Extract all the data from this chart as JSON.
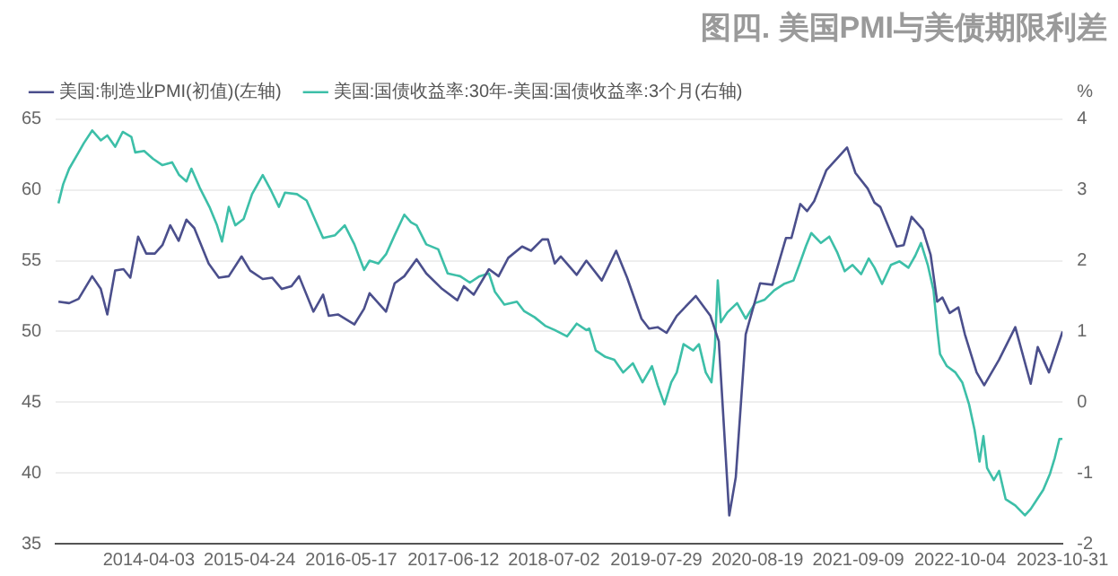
{
  "chart_data": {
    "type": "line",
    "title": "图四. 美国PMI与美债期限利差",
    "y2label": "%",
    "xlim": [
      "2013-04-12",
      "2023-10-31"
    ],
    "xticks": [
      "2014-04-03",
      "2015-04-24",
      "2016-05-17",
      "2017-06-12",
      "2018-07-02",
      "2019-07-29",
      "2020-08-19",
      "2021-09-09",
      "2022-10-04",
      "2023-10-31"
    ],
    "ylim": [
      35,
      65
    ],
    "yticks": [
      35,
      40,
      45,
      50,
      55,
      60,
      65
    ],
    "y2lim": [
      -2,
      4
    ],
    "y2ticks": [
      -2,
      -1,
      0,
      1,
      2,
      3,
      4
    ],
    "grid": "y",
    "legend": "top left",
    "marker": "none",
    "line_style": "solid",
    "series": [
      {
        "name": "美国:制造业PMI(初值)(左轴)",
        "color": "#4b4f8c",
        "x": [
          "2013-04-22",
          "2013-06-02",
          "2013-07-08",
          "2013-08-29",
          "2013-10-01",
          "2013-10-26",
          "2013-11-25",
          "2013-12-27",
          "2014-01-22",
          "2014-02-21",
          "2014-03-24",
          "2014-04-26",
          "2014-05-25",
          "2014-06-24",
          "2014-07-26",
          "2014-08-25",
          "2014-09-24",
          "2014-11-18",
          "2014-12-27",
          "2015-02-03",
          "2015-03-24",
          "2015-04-26",
          "2015-06-13",
          "2015-07-19",
          "2015-08-25",
          "2015-10-01",
          "2015-10-30",
          "2015-12-24",
          "2016-01-30",
          "2016-02-21",
          "2016-03-27",
          "2016-05-29",
          "2016-07-05",
          "2016-07-26",
          "2016-09-27",
          "2016-10-30",
          "2016-12-06",
          "2017-01-22",
          "2017-02-28",
          "2017-04-30",
          "2017-06-27",
          "2017-07-22",
          "2017-08-29",
          "2017-10-26",
          "2017-12-02",
          "2018-01-08",
          "2018-03-02",
          "2018-04-05",
          "2018-05-18",
          "2018-06-09",
          "2018-07-05",
          "2018-07-28",
          "2018-09-27",
          "2018-11-03",
          "2019-01-01",
          "2019-02-25",
          "2019-04-08",
          "2019-06-02",
          "2019-07-01",
          "2019-08-03",
          "2019-09-06",
          "2019-10-15",
          "2019-12-27",
          "2020-02-21",
          "2020-03-24",
          "2020-05-03",
          "2020-05-28",
          "2020-07-05",
          "2020-08-29",
          "2020-10-15",
          "2020-12-06",
          "2020-12-27",
          "2021-01-30",
          "2021-02-25",
          "2021-03-24",
          "2021-05-10",
          "2021-07-28",
          "2021-08-29",
          "2021-10-15",
          "2021-11-10",
          "2021-12-02",
          "2022-02-03",
          "2022-03-02",
          "2022-04-01",
          "2022-05-14",
          "2022-06-13",
          "2022-07-08",
          "2022-07-28",
          "2022-08-25",
          "2022-09-27",
          "2022-10-22",
          "2022-12-06",
          "2023-01-04",
          "2023-03-02",
          "2023-05-03",
          "2023-07-01",
          "2023-07-28",
          "2023-09-09",
          "2023-10-31"
        ],
        "values": [
          52.1,
          52.0,
          52.3,
          53.9,
          53.0,
          51.2,
          54.3,
          54.4,
          53.8,
          56.7,
          55.5,
          55.5,
          56.1,
          57.5,
          56.4,
          57.9,
          57.3,
          54.8,
          53.8,
          53.9,
          55.3,
          54.3,
          53.7,
          53.8,
          53.0,
          53.2,
          53.9,
          51.4,
          52.6,
          51.1,
          51.2,
          50.5,
          51.6,
          52.7,
          51.4,
          53.4,
          53.9,
          55.1,
          54.1,
          53.0,
          52.2,
          53.2,
          52.6,
          54.4,
          53.9,
          55.2,
          56.0,
          55.7,
          56.5,
          56.5,
          54.8,
          55.3,
          54.0,
          55.0,
          53.6,
          55.7,
          53.8,
          50.9,
          50.2,
          50.3,
          49.9,
          51.1,
          52.5,
          51.1,
          49.3,
          37.0,
          39.7,
          49.8,
          53.4,
          53.3,
          56.6,
          56.6,
          59.0,
          58.5,
          59.2,
          61.4,
          63.0,
          61.2,
          60.1,
          59.1,
          58.8,
          56.0,
          56.1,
          58.1,
          57.2,
          55.4,
          52.1,
          52.4,
          51.3,
          51.7,
          49.8,
          47.1,
          46.2,
          48.0,
          50.3,
          46.3,
          48.9,
          47.1,
          50.0
        ]
      },
      {
        "name": "美国:国债收益率:30年-美国:国债收益率:3个月(右轴)",
        "color": "#3dbfa8",
        "axis": "y2",
        "x": [
          "2013-04-22",
          "2013-05-10",
          "2013-06-02",
          "2013-07-08",
          "2013-07-28",
          "2013-08-29",
          "2013-10-01",
          "2013-10-26",
          "2013-11-25",
          "2013-12-24",
          "2014-01-26",
          "2014-02-10",
          "2014-03-16",
          "2014-04-19",
          "2014-05-25",
          "2014-07-01",
          "2014-07-28",
          "2014-08-25",
          "2014-09-13",
          "2014-10-15",
          "2014-11-21",
          "2014-12-20",
          "2015-01-08",
          "2015-02-03",
          "2015-02-28",
          "2015-04-01",
          "2015-05-03",
          "2015-06-13",
          "2015-07-15",
          "2015-08-14",
          "2015-09-06",
          "2015-10-22",
          "2015-11-28",
          "2015-12-24",
          "2016-01-30",
          "2016-03-16",
          "2016-04-22",
          "2016-05-29",
          "2016-07-05",
          "2016-07-26",
          "2016-08-29",
          "2016-09-27",
          "2016-10-30",
          "2016-12-06",
          "2017-01-01",
          "2017-01-22",
          "2017-02-28",
          "2017-04-15",
          "2017-05-21",
          "2017-07-08",
          "2017-08-14",
          "2017-09-20",
          "2017-10-26",
          "2017-11-18",
          "2017-12-24",
          "2018-02-10",
          "2018-03-09",
          "2018-04-19",
          "2018-05-29",
          "2018-07-05",
          "2018-08-21",
          "2018-09-27",
          "2018-11-03",
          "2018-11-14",
          "2018-12-09",
          "2019-01-15",
          "2019-02-18",
          "2019-03-24",
          "2019-04-30",
          "2019-06-06",
          "2019-07-12",
          "2019-08-03",
          "2019-08-29",
          "2019-09-24",
          "2019-10-15",
          "2019-11-10",
          "2019-12-17",
          "2020-01-08",
          "2020-02-03",
          "2020-02-25",
          "2020-03-09",
          "2020-03-20",
          "2020-04-01",
          "2020-04-26",
          "2020-06-02",
          "2020-07-05",
          "2020-08-10",
          "2020-09-16",
          "2020-10-22",
          "2020-11-28",
          "2021-01-04",
          "2021-01-26",
          "2021-02-21",
          "2021-03-13",
          "2021-04-19",
          "2021-05-21",
          "2021-06-20",
          "2021-07-19",
          "2021-08-18",
          "2021-09-20",
          "2021-10-19",
          "2021-11-10",
          "2021-12-09",
          "2022-01-12",
          "2022-02-14",
          "2022-03-20",
          "2022-04-15",
          "2022-05-07",
          "2022-06-02",
          "2022-06-24",
          "2022-07-08",
          "2022-07-19",
          "2022-08-14",
          "2022-09-16",
          "2022-10-12",
          "2022-11-07",
          "2022-11-28",
          "2022-12-17",
          "2023-01-01",
          "2023-01-15",
          "2023-02-10",
          "2023-03-02",
          "2023-03-27",
          "2023-05-03",
          "2023-06-09",
          "2023-07-01",
          "2023-07-26",
          "2023-08-18",
          "2023-09-13",
          "2023-10-01",
          "2023-10-19",
          "2023-10-31"
        ],
        "values": [
          2.81,
          3.08,
          3.3,
          3.53,
          3.66,
          3.84,
          3.7,
          3.77,
          3.61,
          3.82,
          3.75,
          3.53,
          3.55,
          3.44,
          3.35,
          3.39,
          3.21,
          3.12,
          3.3,
          3.03,
          2.76,
          2.5,
          2.27,
          2.76,
          2.5,
          2.59,
          2.94,
          3.21,
          2.99,
          2.76,
          2.96,
          2.94,
          2.85,
          2.63,
          2.32,
          2.36,
          2.5,
          2.23,
          1.87,
          2.0,
          1.96,
          2.09,
          2.36,
          2.65,
          2.54,
          2.5,
          2.23,
          2.16,
          1.82,
          1.78,
          1.69,
          1.78,
          1.82,
          1.56,
          1.38,
          1.42,
          1.29,
          1.2,
          1.08,
          1.02,
          0.93,
          1.11,
          1.02,
          1.04,
          0.73,
          0.64,
          0.6,
          0.42,
          0.55,
          0.28,
          0.51,
          0.24,
          -0.03,
          0.28,
          0.42,
          0.82,
          0.73,
          0.82,
          0.42,
          0.28,
          0.78,
          1.72,
          1.13,
          1.27,
          1.4,
          1.18,
          1.4,
          1.45,
          1.58,
          1.67,
          1.72,
          1.94,
          2.21,
          2.39,
          2.25,
          2.34,
          2.12,
          1.85,
          1.94,
          1.81,
          2.03,
          1.9,
          1.67,
          1.94,
          1.99,
          1.9,
          2.07,
          2.25,
          1.94,
          1.58,
          1.04,
          0.68,
          0.51,
          0.42,
          0.28,
          -0.03,
          -0.39,
          -0.84,
          -0.48,
          -0.93,
          -1.1,
          -0.97,
          -1.37,
          -1.46,
          -1.6,
          -1.51,
          -1.37,
          -1.24,
          -1.01,
          -0.79,
          -0.52,
          -0.52
        ]
      }
    ]
  }
}
